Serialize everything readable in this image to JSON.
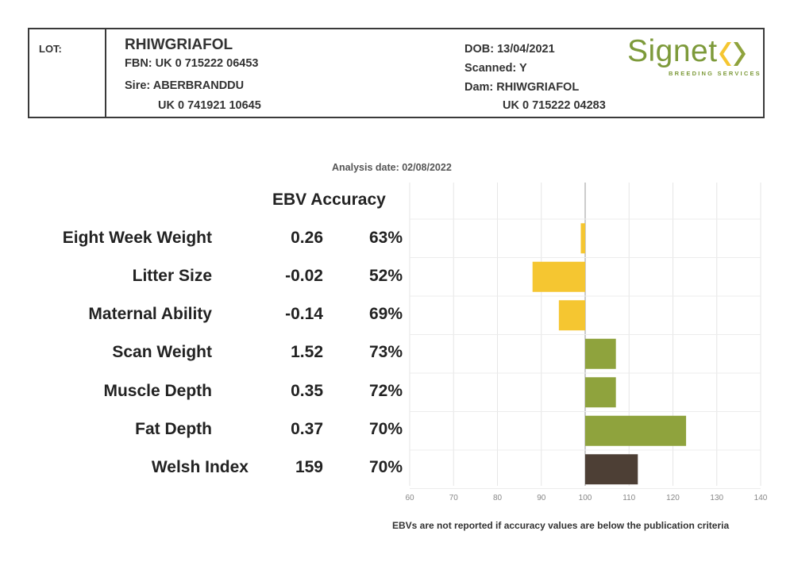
{
  "header": {
    "lot_label": "LOT:",
    "name": "RHIWGRIAFOL",
    "fbn": "FBN: UK 0 715222 06453",
    "sire": "Sire: ABERBRANDDU",
    "sire_id": "UK 0 741921 10645",
    "dob": "DOB: 13/04/2021",
    "scanned": "Scanned: Y",
    "dam": "Dam: RHIWGRIAFOL",
    "dam_id": "UK 0 715222 04283",
    "logo_word": "Signet",
    "logo_tag": "BREEDING SERVICES"
  },
  "analysis_date": "Analysis date: 02/08/2022",
  "table": {
    "column_header": "EBV Accuracy",
    "rows": [
      {
        "trait": "Eight Week Weight",
        "ebv": "0.26",
        "accuracy": "63%"
      },
      {
        "trait": "Litter Size",
        "ebv": "-0.02",
        "accuracy": "52%"
      },
      {
        "trait": "Maternal Ability",
        "ebv": "-0.14",
        "accuracy": "69%"
      },
      {
        "trait": "Scan Weight",
        "ebv": "1.52",
        "accuracy": "73%"
      },
      {
        "trait": "Muscle Depth",
        "ebv": "0.35",
        "accuracy": "72%"
      },
      {
        "trait": "Fat Depth",
        "ebv": "0.37",
        "accuracy": "70%"
      },
      {
        "trait": "Welsh Index",
        "ebv": "159",
        "accuracy": "70%"
      }
    ]
  },
  "chart_data": {
    "type": "bar",
    "orientation": "horizontal",
    "baseline": 100,
    "xlim": [
      60,
      140
    ],
    "xticks": [
      60,
      70,
      80,
      90,
      100,
      110,
      120,
      130,
      140
    ],
    "grid": true,
    "categories": [
      "Eight Week Weight",
      "Litter Size",
      "Maternal Ability",
      "Scan Weight",
      "Muscle Depth",
      "Fat Depth",
      "Welsh Index"
    ],
    "values": [
      99,
      88,
      94,
      107,
      107,
      123,
      112
    ],
    "colors": [
      "#f5c631",
      "#f5c631",
      "#f5c631",
      "#8fa33d",
      "#8fa33d",
      "#8fa33d",
      "#4d3f35"
    ]
  },
  "footnote": "EBVs are not reported if accuracy values are below the publication criteria"
}
